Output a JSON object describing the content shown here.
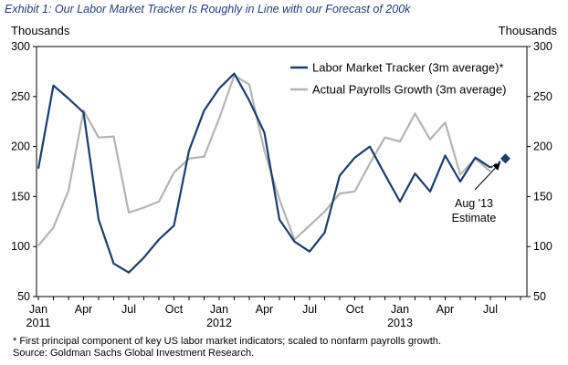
{
  "title": "Exhibit 1: Our Labor Market Tracker Is Roughly in Line with our Forecast of 200k",
  "colors": {
    "tracker": "#1a3d6d",
    "payrolls": "#b4b4b4",
    "title": "#1f3d7a",
    "estimate": "#1a3d6d"
  },
  "chart_data": {
    "type": "line",
    "title": "Exhibit 1: Our Labor Market Tracker Is Roughly in Line with our Forecast of 200k",
    "ylabel_left": "Thousands",
    "ylabel_right": "Thousands",
    "ylim": [
      50,
      300
    ],
    "yticks": [
      50,
      100,
      150,
      200,
      250,
      300
    ],
    "x_ticks": [
      {
        "index": 0,
        "label": "Jan",
        "sub": "2011"
      },
      {
        "index": 3,
        "label": "Apr",
        "sub": ""
      },
      {
        "index": 6,
        "label": "Jul",
        "sub": ""
      },
      {
        "index": 9,
        "label": "Oct",
        "sub": ""
      },
      {
        "index": 12,
        "label": "Jan",
        "sub": "2012"
      },
      {
        "index": 15,
        "label": "Apr",
        "sub": ""
      },
      {
        "index": 18,
        "label": "Jul",
        "sub": ""
      },
      {
        "index": 21,
        "label": "Oct",
        "sub": ""
      },
      {
        "index": 24,
        "label": "Jan",
        "sub": "2013"
      },
      {
        "index": 27,
        "label": "Apr",
        "sub": ""
      },
      {
        "index": 30,
        "label": "Jul",
        "sub": ""
      }
    ],
    "x_count": 33,
    "legend_position": "top-right",
    "series": [
      {
        "name": "Labor Market Tracker (3m average)*",
        "color": "#1a3d6d",
        "values": [
          178,
          261,
          248,
          234,
          127,
          83,
          74,
          89,
          107,
          121,
          196,
          236,
          258,
          273,
          246,
          214,
          127,
          105,
          95,
          114,
          171,
          189,
          200,
          172,
          145,
          173,
          155,
          191,
          165,
          189,
          179
        ]
      },
      {
        "name": "Actual Payrolls Growth (3m average)",
        "color": "#b4b4b4",
        "values": [
          101,
          119,
          156,
          236,
          209,
          210,
          134,
          139,
          145,
          174,
          188,
          190,
          228,
          271,
          262,
          196,
          147,
          107,
          121,
          135,
          153,
          155,
          183,
          209,
          205,
          233,
          207,
          224,
          172,
          188,
          175
        ]
      }
    ],
    "estimate": {
      "index": 31,
      "value": 188,
      "label_line1": "Aug '13",
      "label_line2": "Estimate"
    }
  },
  "footnote": {
    "line1": "* First principal component of key US labor market indicators; scaled to nonfarm payrolls growth.",
    "line2": "Source: Goldman Sachs Global Investment Research."
  }
}
